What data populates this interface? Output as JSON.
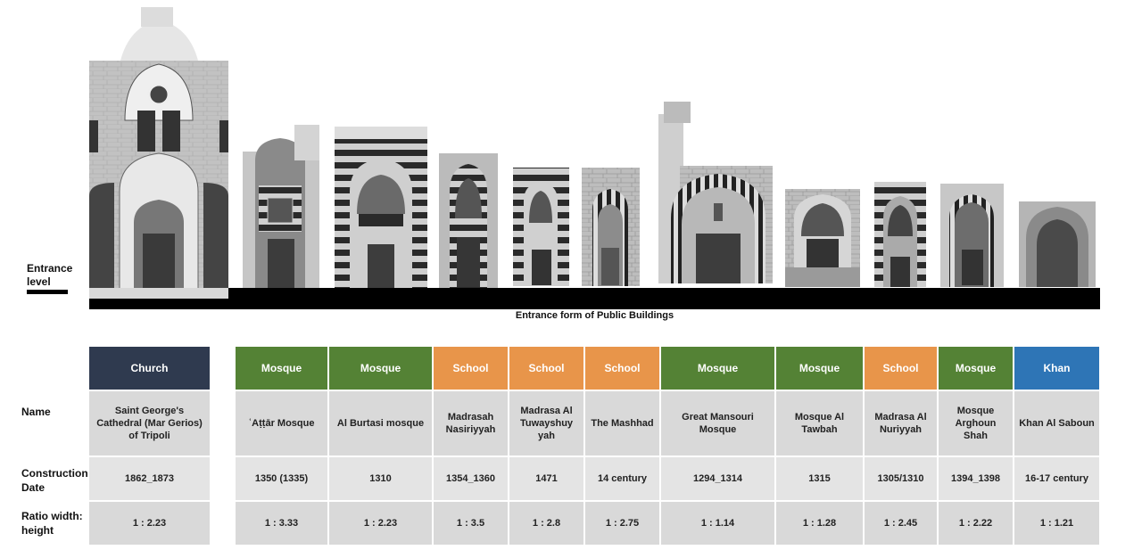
{
  "diagram": {
    "caption": "Entrance form of Public Buildings",
    "entrance_label": "Entrance level",
    "row_labels": {
      "name": "Name",
      "date": "Construction Date",
      "ratio": "Ratio width: height"
    },
    "colors": {
      "Church": "#2f3a4f",
      "Mosque": "#548235",
      "School": "#e8954a",
      "Khan": "#2e75b6"
    },
    "buildings": [
      {
        "type": "Church",
        "name": "Saint George's Cathedral (Mar Gerios) of Tripoli",
        "date": "1862_1873",
        "ratio": "1 : 2.23"
      },
      {
        "type": "Mosque",
        "name": "ʿAṭṭār Mosque",
        "date": "1350    (1335)",
        "ratio": "1 : 3.33"
      },
      {
        "type": "Mosque",
        "name": "Al Burtasi mosque",
        "date": "1310",
        "ratio": "1 : 2.23"
      },
      {
        "type": "School",
        "name": "Madrasah Nasiriyyah",
        "date": "1354_1360",
        "ratio": "1 : 3.5"
      },
      {
        "type": "School",
        "name": "Madrasa Al Tuwayshuy yah",
        "date": "1471",
        "ratio": "1 : 2.8"
      },
      {
        "type": "School",
        "name": "The Mashhad",
        "date": "14 century",
        "ratio": "1 : 2.75"
      },
      {
        "type": "Mosque",
        "name": "Great Mansouri Mosque",
        "date": "1294_1314",
        "ratio": "1 : 1.14"
      },
      {
        "type": "Mosque",
        "name": "Mosque Al Tawbah",
        "date": "1315",
        "ratio": "1 : 1.28"
      },
      {
        "type": "School",
        "name": "Madrasa Al Nuriyyah",
        "date": "1305/1310",
        "ratio": "1 : 2.45"
      },
      {
        "type": "Mosque",
        "name": "Mosque Arghoun Shah",
        "date": "1394_1398",
        "ratio": "1 : 2.22"
      },
      {
        "type": "Khan",
        "name": "Khan Al Saboun",
        "date": "16-17 century",
        "ratio": "1 : 1.21"
      }
    ]
  }
}
